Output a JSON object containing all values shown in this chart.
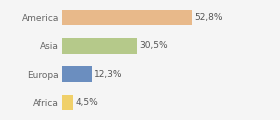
{
  "categories": [
    "Africa",
    "Europa",
    "Asia",
    "America"
  ],
  "values": [
    52.8,
    30.5,
    12.3,
    4.5
  ],
  "labels": [
    "52,8%",
    "30,5%",
    "12,3%",
    "4,5%"
  ],
  "bar_colors": [
    "#e8b98a",
    "#b5c98a",
    "#6b8ebf",
    "#f0d06a"
  ],
  "background_color": "#f5f5f5",
  "xlim": [
    0,
    75
  ],
  "label_fontsize": 6.5,
  "tick_fontsize": 6.5,
  "bar_height": 0.55
}
